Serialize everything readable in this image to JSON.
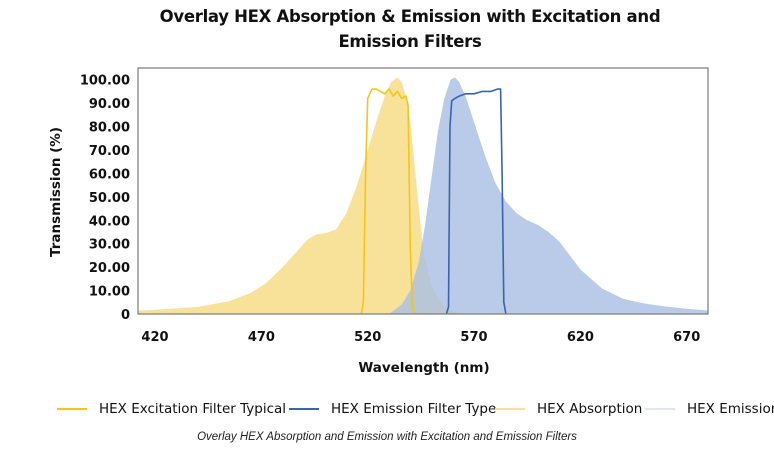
{
  "chart_data": {
    "type": "area",
    "title_line1": "Overlay HEX Absorption & Emission with Excitation and",
    "title_line2": "Emission Filters",
    "xlabel": "Wavelength (nm)",
    "ylabel": "Transmission (%)",
    "xlim": [
      412,
      680
    ],
    "ylim": [
      0,
      105
    ],
    "x_ticks": [
      420,
      470,
      520,
      570,
      620,
      670
    ],
    "y_ticks": [
      {
        "value": 0,
        "label": "0"
      },
      {
        "value": 10,
        "label": "10.00"
      },
      {
        "value": 20,
        "label": "20.00"
      },
      {
        "value": 30,
        "label": "30.00"
      },
      {
        "value": 40,
        "label": "40.00"
      },
      {
        "value": 50,
        "label": "50.00"
      },
      {
        "value": 60,
        "label": "60.00"
      },
      {
        "value": 70,
        "label": "70.00"
      },
      {
        "value": 80,
        "label": "80.00"
      },
      {
        "value": 90,
        "label": "90.00"
      },
      {
        "value": 100,
        "label": "100.00"
      }
    ],
    "grid": false,
    "legend_position": "bottom",
    "series": [
      {
        "name": "HEX Absorption",
        "kind": "area",
        "color": "#f8e29a",
        "x": [
          412,
          420,
          440,
          455,
          465,
          472,
          480,
          487,
          492,
          496,
          500,
          505,
          510,
          515,
          520,
          524,
          528,
          531,
          534,
          536,
          538,
          540,
          543,
          546,
          550,
          555,
          560,
          565
        ],
        "y": [
          1.5,
          1.8,
          3,
          5.5,
          9,
          13,
          20,
          27,
          32,
          34,
          34.5,
          36,
          43,
          55,
          70,
          82,
          93,
          99,
          101,
          99,
          93,
          82,
          55,
          28,
          12,
          4,
          1,
          0
        ]
      },
      {
        "name": "HEX Emission",
        "kind": "area",
        "color": "#a9c0e3",
        "x": [
          530,
          536,
          540,
          544,
          547,
          550,
          553,
          556,
          559,
          561,
          563,
          566,
          570,
          575,
          580,
          585,
          590,
          595,
          600,
          605,
          610,
          615,
          620,
          630,
          640,
          650,
          660,
          670,
          680
        ],
        "y": [
          0,
          4,
          10,
          22,
          38,
          58,
          78,
          92,
          100,
          101,
          99,
          93,
          82,
          68,
          56,
          48,
          43,
          40,
          38,
          35,
          31,
          25,
          19,
          11,
          6.5,
          4.5,
          3.2,
          2.2,
          1.5
        ]
      },
      {
        "name": "HEX Excitation Filter Typical",
        "kind": "line",
        "color": "#f5c518",
        "x": [
          517,
          518,
          519,
          520,
          521,
          522,
          524,
          526,
          528,
          530,
          532,
          534,
          536,
          538,
          539,
          540,
          541,
          542
        ],
        "y": [
          0,
          5,
          60,
          92,
          94,
          96,
          96,
          95,
          94,
          96,
          93,
          95,
          92,
          93,
          89,
          30,
          2,
          0
        ]
      },
      {
        "name": "HEX Emission Filter Type",
        "kind": "line",
        "color": "#3a64ad",
        "x": [
          557,
          558,
          558.7,
          559.5,
          561,
          563,
          566,
          570,
          574,
          578,
          581,
          582.5,
          583.2,
          584,
          585
        ],
        "y": [
          0,
          3,
          80,
          91,
          92,
          93,
          94,
          94,
          95,
          95,
          96,
          96,
          60,
          5,
          0
        ]
      }
    ]
  },
  "legend": {
    "items": [
      {
        "label": "HEX Excitation Filter Typical",
        "color": "#f5c518"
      },
      {
        "label": "HEX Emission Filter Type",
        "color": "#3a64ad"
      },
      {
        "label": "HEX Absorption",
        "color": "#f8e29a"
      },
      {
        "label": "HEX Emission",
        "color": "#dde6f2"
      }
    ]
  },
  "caption": "Overlay HEX Absorption and Emission with Excitation and Emission Filters"
}
